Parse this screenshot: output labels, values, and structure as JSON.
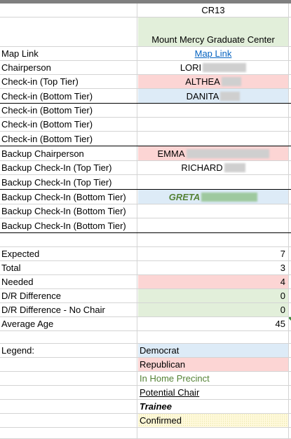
{
  "header": {
    "column_title": "CR13",
    "location": "Mount Mercy Graduate Center"
  },
  "roles": [
    {
      "label": "Map Link",
      "value": "Map Link",
      "is_link": true,
      "color": ""
    },
    {
      "label": "Chairperson",
      "value": "LORI",
      "color": ""
    },
    {
      "label": "Check-in (Top Tier)",
      "value": "ALTHEA",
      "color": "red"
    },
    {
      "label": "Check-in (Bottom Tier)",
      "value": "DANITA",
      "color": "blue"
    },
    {
      "label": "Check-in (Bottom Tier)",
      "value": "",
      "color": ""
    },
    {
      "label": "Check-in (Bottom Tier)",
      "value": "",
      "color": ""
    },
    {
      "label": "Check-in (Bottom Tier)",
      "value": "",
      "color": ""
    },
    {
      "label": "Backup Chairperson",
      "value": "EMMA",
      "color": "red"
    },
    {
      "label": "Backup Check-In (Top Tier)",
      "value": "RICHARD",
      "color": ""
    },
    {
      "label": "Backup Check-In (Top Tier)",
      "value": "",
      "color": ""
    },
    {
      "label": "Backup Check-In (Bottom Tier)",
      "value": "GRETA",
      "color": "blue"
    },
    {
      "label": "Backup Check-In (Bottom Tier)",
      "value": "",
      "color": ""
    },
    {
      "label": "Backup Check-In (Bottom Tier)",
      "value": "",
      "color": ""
    }
  ],
  "stats": [
    {
      "label": "Expected",
      "value": "7",
      "color": ""
    },
    {
      "label": "Total",
      "value": "3",
      "color": ""
    },
    {
      "label": "Needed",
      "value": "4",
      "color": "red"
    },
    {
      "label": "D/R Difference",
      "value": "0",
      "color": "green"
    },
    {
      "label": "D/R Difference - No Chair",
      "value": "0",
      "color": "green"
    },
    {
      "label": "Average Age",
      "value": "45",
      "color": ""
    }
  ],
  "legend": {
    "title": "Legend:",
    "items": [
      "Democrat",
      "Republican",
      "In Home Precinct",
      "Potential Chair",
      "Trainee",
      "Confirmed"
    ]
  },
  "colors": {
    "democrat": "#ddebf7",
    "republican": "#fcd5d4",
    "in_home_precinct": "#548235",
    "confirmed": "#fff9db",
    "gridline": "#d4d4d4"
  }
}
